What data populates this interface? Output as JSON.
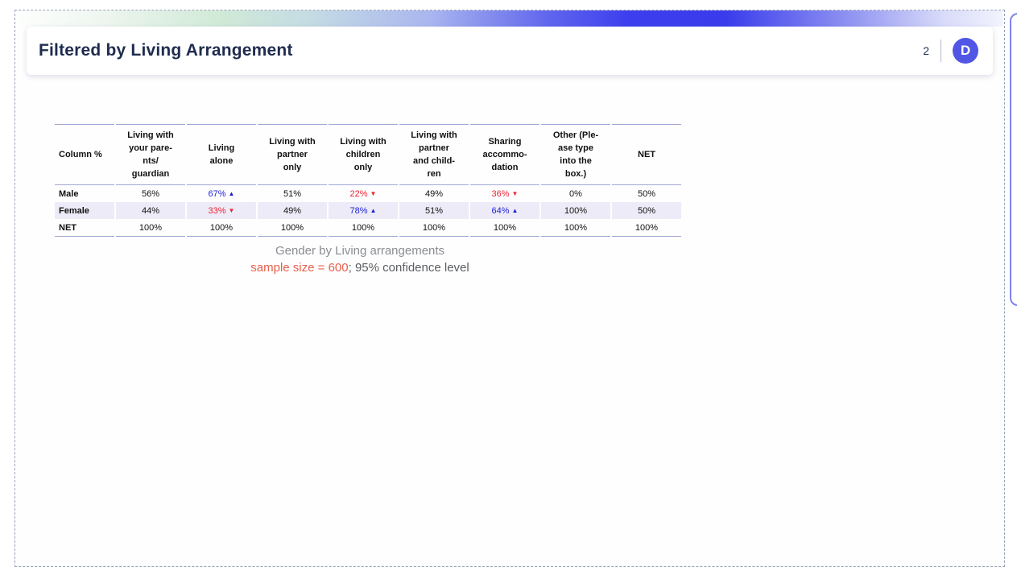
{
  "header": {
    "title": "Filtered by Living Arrangement",
    "page_number": "2",
    "logo_letter": "D"
  },
  "icons": {
    "up_arrow": "▲",
    "down_arrow": "▼"
  },
  "colors": {
    "accent_indigo": "#5156e5",
    "significant_high_blue": "#1f1fdb",
    "significant_low_red": "#ee2233",
    "sample_size_red": "#e8604c",
    "shaded_row": "#ecebf7"
  },
  "table": {
    "corner_label": "Column %",
    "columns": [
      "Living with\nyour pare-\nnts/\nguardian",
      "Living\nalone",
      "Living with\npartner\nonly",
      "Living with\nchildren\nonly",
      "Living with\npartner\nand child-\nren",
      "Sharing\naccommo-\ndation",
      "Other (Ple-\nase type\ninto the\nbox.)",
      "NET"
    ],
    "rows": [
      {
        "label": "Male",
        "shaded": false,
        "cells": [
          {
            "v": "56%"
          },
          {
            "v": "67%",
            "sig": "up"
          },
          {
            "v": "51%"
          },
          {
            "v": "22%",
            "sig": "down"
          },
          {
            "v": "49%"
          },
          {
            "v": "36%",
            "sig": "down"
          },
          {
            "v": "0%"
          },
          {
            "v": "50%"
          }
        ]
      },
      {
        "label": "Female",
        "shaded": true,
        "cells": [
          {
            "v": "44%"
          },
          {
            "v": "33%",
            "sig": "down"
          },
          {
            "v": "49%"
          },
          {
            "v": "78%",
            "sig": "up"
          },
          {
            "v": "51%"
          },
          {
            "v": "64%",
            "sig": "up"
          },
          {
            "v": "100%"
          },
          {
            "v": "50%"
          }
        ]
      },
      {
        "label": "NET",
        "shaded": false,
        "cells": [
          {
            "v": "100%"
          },
          {
            "v": "100%"
          },
          {
            "v": "100%"
          },
          {
            "v": "100%"
          },
          {
            "v": "100%"
          },
          {
            "v": "100%"
          },
          {
            "v": "100%"
          },
          {
            "v": "100%"
          }
        ]
      }
    ]
  },
  "caption": {
    "line1": "Gender by Living arrangements",
    "sample_text": "sample size = 600",
    "confidence_text": "; 95% confidence level"
  }
}
